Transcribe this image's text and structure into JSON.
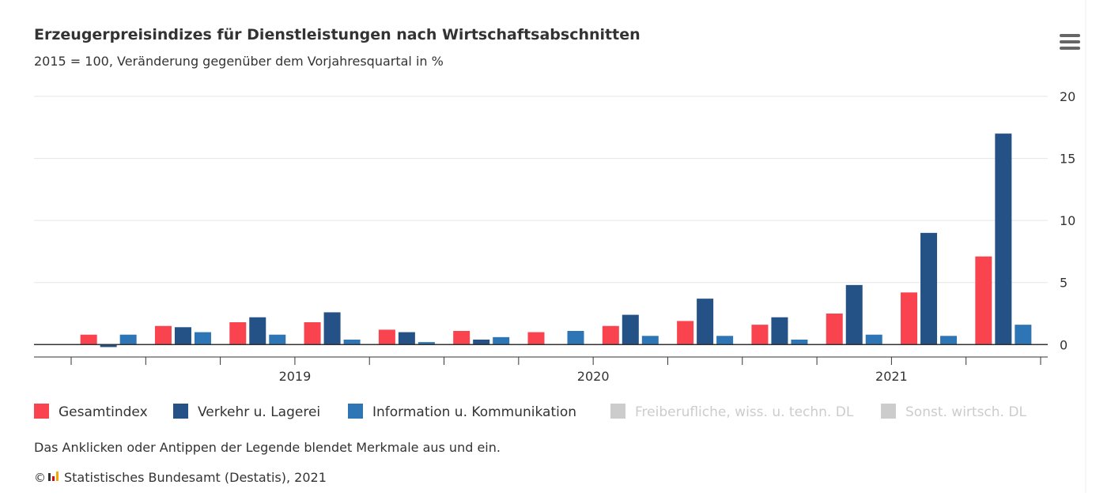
{
  "chart_data": {
    "type": "bar",
    "title": "Erzeugerpreisindizes für Dienstleistungen nach Wirtschaftsabschnitten",
    "subtitle": "2015 = 100, Veränderung gegenüber dem Vorjahresquartal in %",
    "categories": [
      null,
      null,
      null,
      null,
      null,
      null,
      null,
      null,
      null,
      null,
      null,
      null,
      null
    ],
    "year_labels": [
      "2019",
      "2020",
      "2021"
    ],
    "series": [
      {
        "name": "Gesamtindex",
        "color": "#f9434e",
        "values": [
          0.8,
          1.5,
          1.8,
          1.8,
          1.2,
          1.1,
          1.0,
          1.5,
          1.9,
          1.6,
          2.5,
          4.2,
          7.1
        ]
      },
      {
        "name": "Verkehr u. Lagerei",
        "color": "#245286",
        "values": [
          -0.2,
          1.4,
          2.2,
          2.6,
          1.0,
          0.4,
          0.0,
          2.4,
          3.7,
          2.2,
          4.8,
          9.0,
          17.0
        ]
      },
      {
        "name": "Information u. Kommunikation",
        "color": "#2e75b6",
        "values": [
          0.8,
          1.0,
          0.8,
          0.4,
          0.2,
          0.6,
          1.1,
          0.7,
          0.7,
          0.4,
          0.8,
          0.7,
          1.6
        ]
      },
      {
        "name": "Freiberufliche, wiss. u. techn. DL",
        "color": "#cccccc",
        "visible": false,
        "values": [
          null,
          null,
          null,
          null,
          null,
          null,
          null,
          null,
          null,
          null,
          null,
          null,
          null
        ]
      },
      {
        "name": "Sonst. wirtsch. DL",
        "color": "#cccccc",
        "visible": false,
        "values": [
          null,
          null,
          null,
          null,
          null,
          null,
          null,
          null,
          null,
          null,
          null,
          null,
          null
        ]
      }
    ],
    "ylim": [
      -1,
      20
    ],
    "yticks": [
      0,
      5,
      10,
      15,
      20
    ],
    "grid": true,
    "note": "Das Anklicken oder Antippen der Legende blendet Merkmale aus und ein.",
    "credit": "Statistisches Bundesamt (Destatis), 2021"
  }
}
